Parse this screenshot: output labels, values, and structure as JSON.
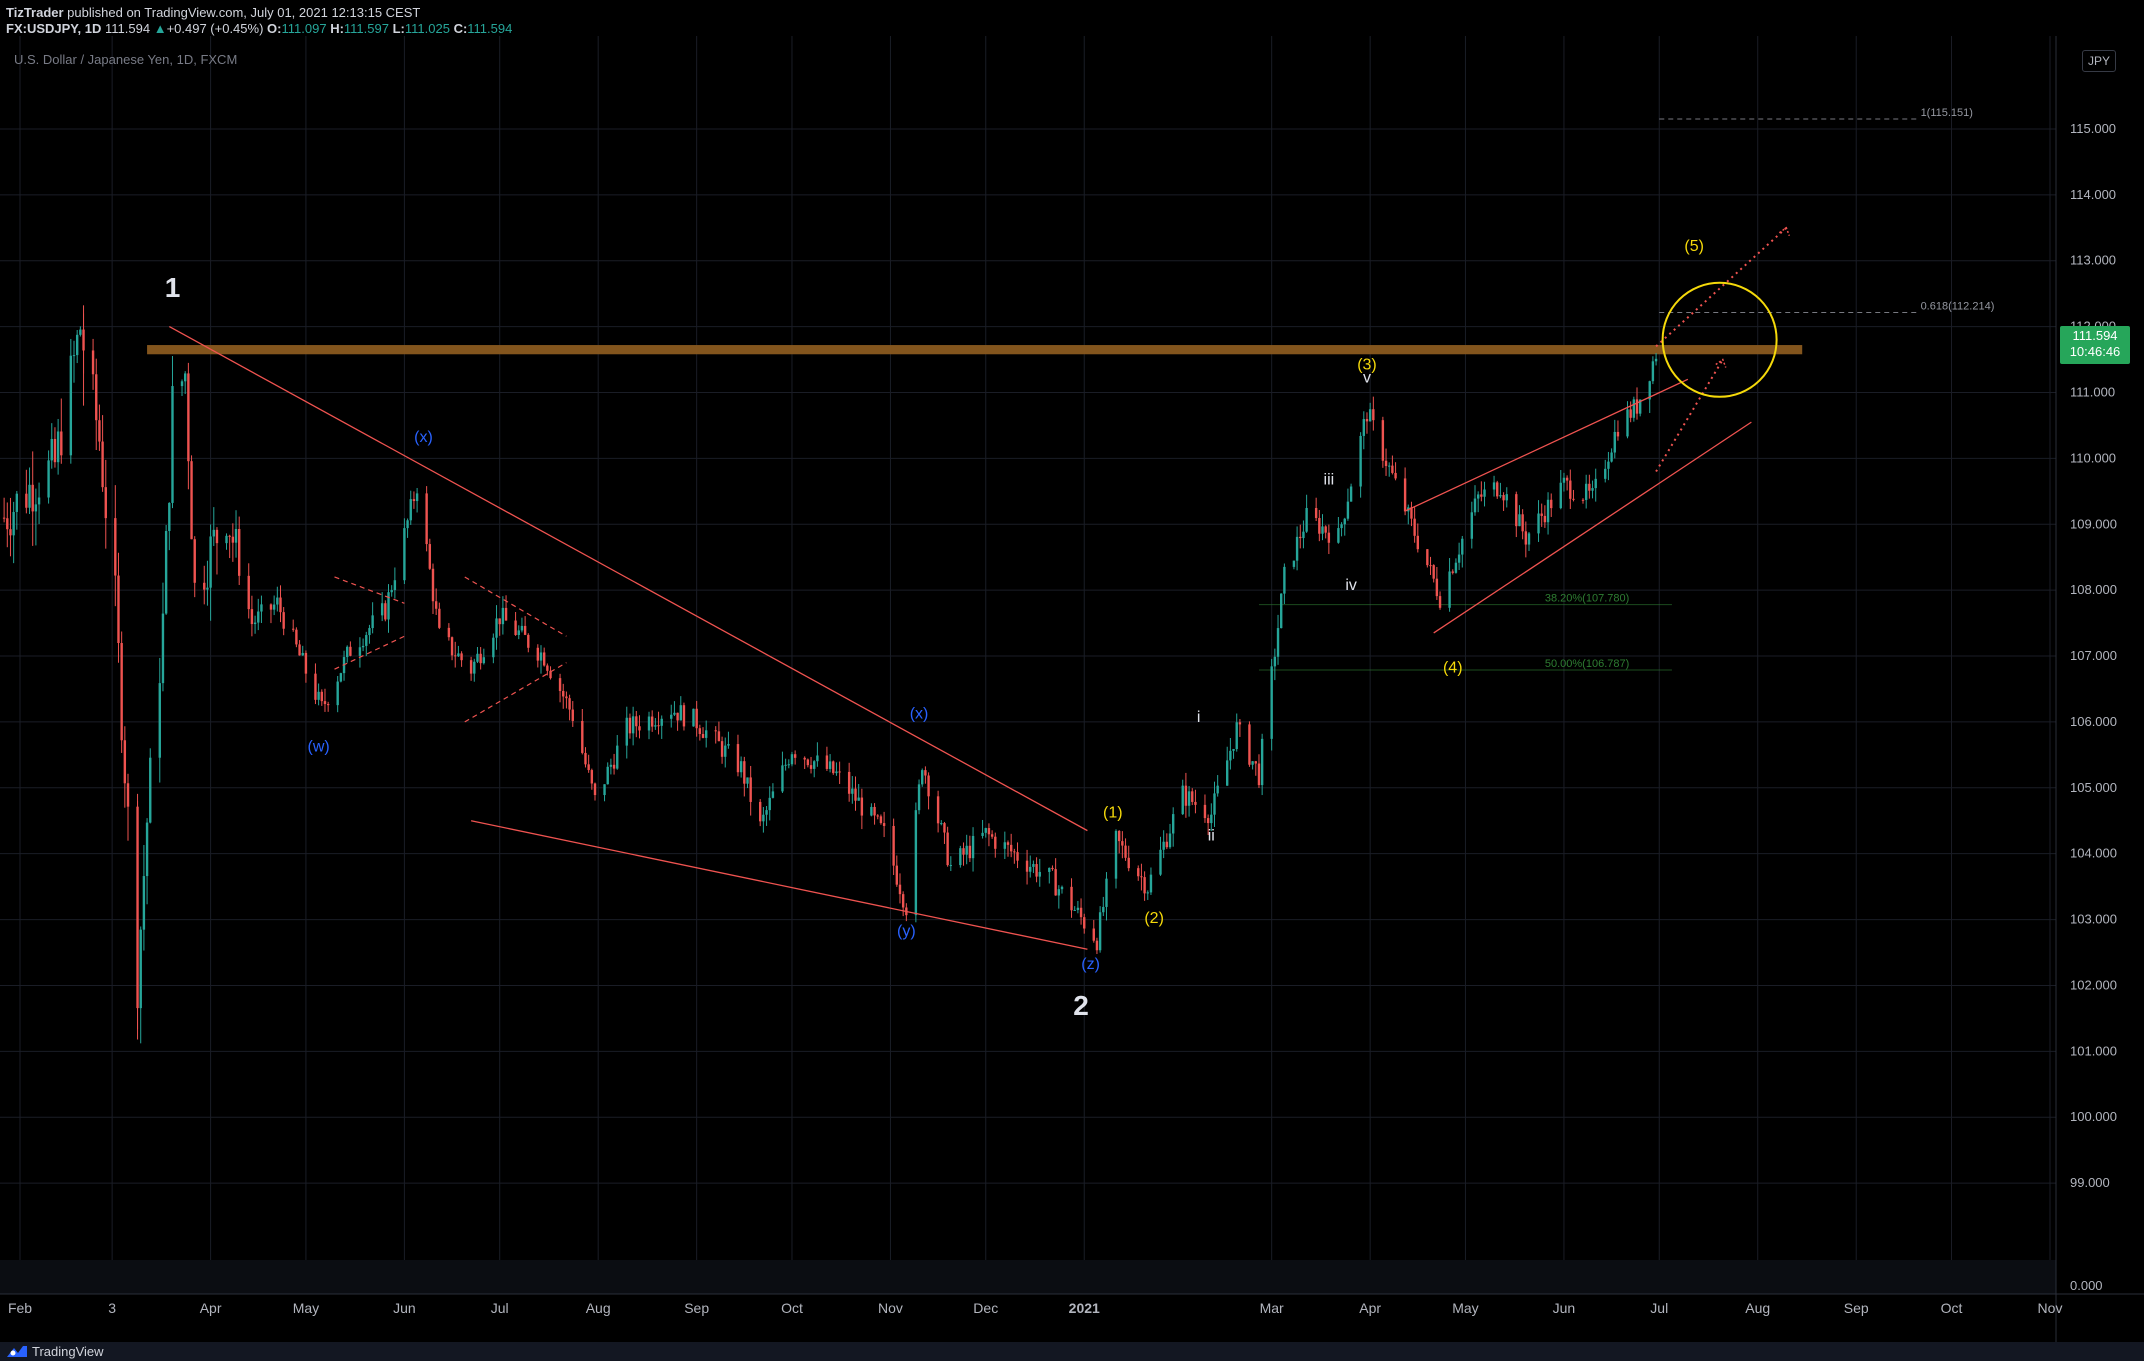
{
  "header": {
    "publisher": "TizTrader",
    "published_text": " published on TradingView.com, July 01, 2021 12:13:15 CEST",
    "symbol": "FX:USDJPY, 1D",
    "last": "111.594",
    "change_arrow": "▲",
    "change": "+0.497 (+0.45%)",
    "o_label": "O:",
    "o": "111.097",
    "h_label": "H:",
    "h": "111.597",
    "l_label": "L:",
    "l": "111.025",
    "c_label": "C:",
    "c": "111.594"
  },
  "instrument_title": "U.S. Dollar / Japanese Yen, 1D, FXCM",
  "currency_button": "JPY",
  "price_badge": {
    "price": "111.594",
    "countdown": "10:46:46"
  },
  "footer": {
    "brand": "TradingView",
    "logo_icon": "tradingview-logo-icon"
  },
  "colors": {
    "up": "#26a69a",
    "down": "#ef5350",
    "resistance": "#8a5a1f",
    "yellow": "#f5d90a",
    "blue": "#2962ff",
    "fib": "#2e7d32",
    "grid": "#1a1d26"
  },
  "chart_data": {
    "type": "candlestick",
    "ylim": [
      98.0,
      115.5
    ],
    "y_ticks": [
      "115.000",
      "114.000",
      "113.000",
      "112.000",
      "111.000",
      "110.000",
      "109.000",
      "108.000",
      "107.000",
      "106.000",
      "105.000",
      "104.000",
      "103.000",
      "102.000",
      "101.000",
      "100.000",
      "99.000"
    ],
    "volume_tick": "0.000",
    "x_ticks": [
      {
        "label": "Feb",
        "date": "2020-02-01"
      },
      {
        "label": "3",
        "date": "2020-03-01"
      },
      {
        "label": "Apr",
        "date": "2020-04-01"
      },
      {
        "label": "May",
        "date": "2020-05-01"
      },
      {
        "label": "Jun",
        "date": "2020-06-01"
      },
      {
        "label": "Jul",
        "date": "2020-07-01"
      },
      {
        "label": "Aug",
        "date": "2020-08-01"
      },
      {
        "label": "Sep",
        "date": "2020-09-01"
      },
      {
        "label": "Oct",
        "date": "2020-10-01"
      },
      {
        "label": "Nov",
        "date": "2020-11-01"
      },
      {
        "label": "Dec",
        "date": "2020-12-01"
      },
      {
        "label": "2021",
        "date": "2021-01-01"
      },
      {
        "label": "Mar",
        "date": "2021-03-01"
      },
      {
        "label": "Apr",
        "date": "2021-04-01"
      },
      {
        "label": "May",
        "date": "2021-05-01"
      },
      {
        "label": "Jun",
        "date": "2021-06-01"
      },
      {
        "label": "Jul",
        "date": "2021-07-01"
      },
      {
        "label": "Aug",
        "date": "2021-08-01"
      },
      {
        "label": "Sep",
        "date": "2021-09-01"
      },
      {
        "label": "Oct",
        "date": "2021-10-01"
      },
      {
        "label": "Nov",
        "date": "2021-11-01"
      }
    ],
    "price_path": [
      [
        "2020-01-27",
        109.1
      ],
      [
        "2020-02-05",
        109.6
      ],
      [
        "2020-02-12",
        109.9
      ],
      [
        "2020-02-20",
        112.0
      ],
      [
        "2020-02-26",
        110.3
      ],
      [
        "2020-03-02",
        107.8
      ],
      [
        "2020-03-06",
        104.5
      ],
      [
        "2020-03-09",
        102.1
      ],
      [
        "2020-03-12",
        104.5
      ],
      [
        "2020-03-17",
        107.5
      ],
      [
        "2020-03-20",
        110.8
      ],
      [
        "2020-03-24",
        111.3
      ],
      [
        "2020-03-27",
        108.0
      ],
      [
        "2020-04-06",
        109.2
      ],
      [
        "2020-04-14",
        107.5
      ],
      [
        "2020-04-22",
        107.8
      ],
      [
        "2020-05-06",
        106.2
      ],
      [
        "2020-05-15",
        107.1
      ],
      [
        "2020-05-26",
        107.7
      ],
      [
        "2020-06-05",
        109.6
      ],
      [
        "2020-06-12",
        107.3
      ],
      [
        "2020-06-22",
        106.8
      ],
      [
        "2020-07-01",
        107.6
      ],
      [
        "2020-07-15",
        107.0
      ],
      [
        "2020-07-24",
        106.1
      ],
      [
        "2020-07-31",
        104.8
      ],
      [
        "2020-08-10",
        105.9
      ],
      [
        "2020-08-24",
        106.2
      ],
      [
        "2020-09-01",
        106.0
      ],
      [
        "2020-09-15",
        105.3
      ],
      [
        "2020-09-21",
        104.4
      ],
      [
        "2020-10-01",
        105.6
      ],
      [
        "2020-10-15",
        105.2
      ],
      [
        "2020-10-30",
        104.3
      ],
      [
        "2020-11-06",
        103.2
      ],
      [
        "2020-11-11",
        105.4
      ],
      [
        "2020-11-20",
        103.8
      ],
      [
        "2020-12-01",
        104.3
      ],
      [
        "2020-12-10",
        104.0
      ],
      [
        "2020-12-22",
        103.6
      ],
      [
        "2021-01-05",
        102.7
      ],
      [
        "2021-01-11",
        104.2
      ],
      [
        "2021-01-21",
        103.5
      ],
      [
        "2021-02-01",
        104.9
      ],
      [
        "2021-02-10",
        104.6
      ],
      [
        "2021-02-18",
        105.9
      ],
      [
        "2021-02-25",
        105.2
      ],
      [
        "2021-03-05",
        108.2
      ],
      [
        "2021-03-12",
        109.1
      ],
      [
        "2021-03-22",
        108.8
      ],
      [
        "2021-03-31",
        110.7
      ],
      [
        "2021-04-09",
        109.6
      ],
      [
        "2021-04-23",
        107.9
      ],
      [
        "2021-05-05",
        109.4
      ],
      [
        "2021-05-12",
        109.6
      ],
      [
        "2021-05-20",
        108.8
      ],
      [
        "2021-06-01",
        109.6
      ],
      [
        "2021-06-10",
        109.4
      ],
      [
        "2021-06-18",
        110.5
      ],
      [
        "2021-06-24",
        110.8
      ],
      [
        "2021-06-30",
        111.6
      ]
    ],
    "resistance_zone": {
      "start": "2020-03-12",
      "end": "2021-08-15",
      "low": 111.58,
      "high": 111.72
    },
    "fibonacci": [
      {
        "label": "1(115.151)",
        "value": 115.151,
        "start": "2021-07-01",
        "end": "2021-09-20"
      },
      {
        "label": "0.618(112.214)",
        "value": 112.214,
        "start": "2021-07-01",
        "end": "2021-09-20"
      },
      {
        "label": "38.20%(107.780)",
        "value": 107.78,
        "start": "2021-02-25",
        "end": "2021-07-05"
      },
      {
        "label": "50.00%(106.787)",
        "value": 106.787,
        "start": "2021-02-25",
        "end": "2021-07-05"
      }
    ],
    "trendlines": [
      {
        "from": [
          "2020-03-19",
          112.0
        ],
        "to": [
          "2021-01-02",
          104.35
        ]
      },
      {
        "from": [
          "2020-06-22",
          104.5
        ],
        "to": [
          "2021-01-02",
          102.55
        ]
      },
      {
        "from": [
          "2021-04-12",
          109.2
        ],
        "to": [
          "2021-07-10",
          111.2
        ]
      },
      {
        "from": [
          "2021-04-21",
          107.35
        ],
        "to": [
          "2021-07-30",
          110.55
        ]
      }
    ],
    "triangles": [
      {
        "upper": [
          [
            "2020-05-10",
            108.2
          ],
          [
            "2020-06-01",
            107.8
          ]
        ],
        "lower": [
          [
            "2020-05-10",
            106.8
          ],
          [
            "2020-06-01",
            107.3
          ]
        ]
      },
      {
        "upper": [
          [
            "2020-06-20",
            108.2
          ],
          [
            "2020-07-22",
            107.3
          ]
        ],
        "lower": [
          [
            "2020-06-20",
            106.0
          ],
          [
            "2020-07-22",
            106.9
          ]
        ]
      }
    ],
    "projections": [
      {
        "from": [
          "2021-06-30",
          111.7
        ],
        "to": [
          "2021-08-10",
          113.5
        ]
      },
      {
        "from": [
          "2021-06-30",
          109.8
        ],
        "to": [
          "2021-07-21",
          111.5
        ]
      }
    ],
    "target_circle": {
      "date": "2021-07-20",
      "price": 111.8,
      "label": "target-circle"
    },
    "wave_labels": [
      {
        "text": "1",
        "date": "2020-03-20",
        "price": 112.45,
        "color": "white",
        "size": "large"
      },
      {
        "text": "2",
        "date": "2020-12-31",
        "price": 101.55,
        "color": "white",
        "size": "large"
      },
      {
        "text": "(w)",
        "date": "2020-05-05",
        "price": 105.55,
        "color": "blue"
      },
      {
        "text": "(x)",
        "date": "2020-06-07",
        "price": 110.25,
        "color": "blue"
      },
      {
        "text": "(x)",
        "date": "2020-11-10",
        "price": 106.05,
        "color": "blue"
      },
      {
        "text": "(y)",
        "date": "2020-11-06",
        "price": 102.75,
        "color": "blue"
      },
      {
        "text": "(z)",
        "date": "2021-01-03",
        "price": 102.25,
        "color": "blue"
      },
      {
        "text": "(1)",
        "date": "2021-01-10",
        "price": 104.55,
        "color": "yellow"
      },
      {
        "text": "(2)",
        "date": "2021-01-23",
        "price": 102.95,
        "color": "yellow"
      },
      {
        "text": "(3)",
        "date": "2021-03-31",
        "price": 111.35,
        "color": "yellow"
      },
      {
        "text": "(4)",
        "date": "2021-04-27",
        "price": 106.75,
        "color": "yellow"
      },
      {
        "text": "(5)",
        "date": "2021-07-12",
        "price": 113.15,
        "color": "yellow"
      },
      {
        "text": "i",
        "date": "2021-02-06",
        "price": 106.0,
        "color": "white"
      },
      {
        "text": "ii",
        "date": "2021-02-10",
        "price": 104.2,
        "color": "white"
      },
      {
        "text": "iii",
        "date": "2021-03-19",
        "price": 109.6,
        "color": "white"
      },
      {
        "text": "iv",
        "date": "2021-03-26",
        "price": 108.0,
        "color": "white"
      },
      {
        "text": "v",
        "date": "2021-03-31",
        "price": 111.15,
        "color": "white"
      }
    ]
  }
}
